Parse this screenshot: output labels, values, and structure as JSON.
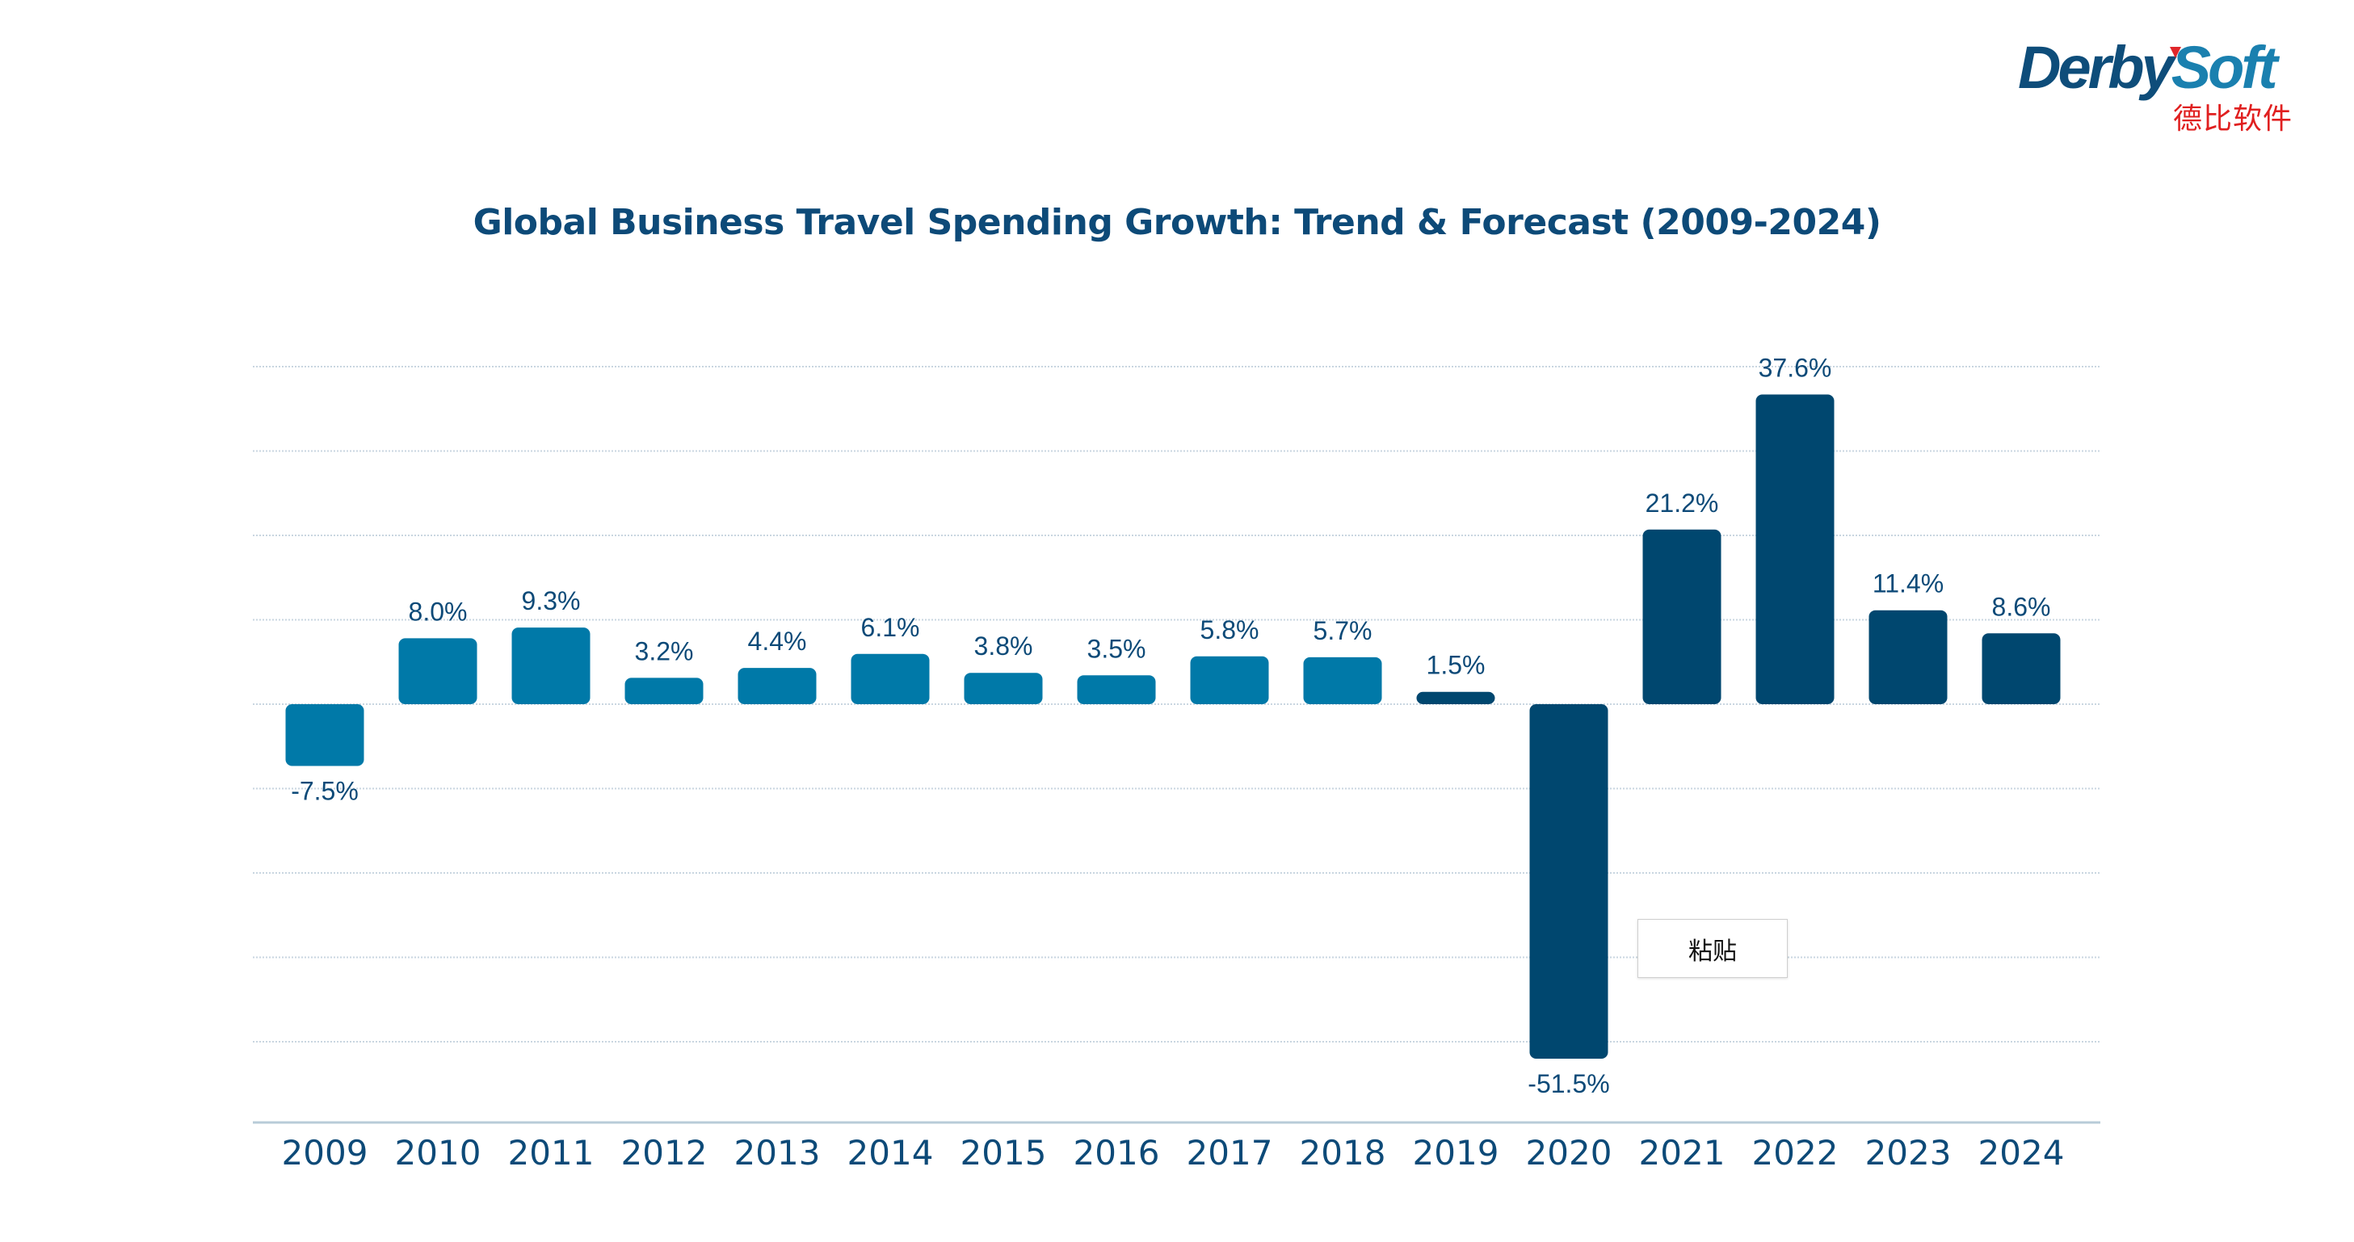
{
  "logo": {
    "brand_part1": "Derby",
    "brand_part2": "Soft",
    "chinese_name": "德比软件"
  },
  "context_menu": {
    "paste_label": "粘贴"
  },
  "colors": {
    "historical_bar": "#0079A8",
    "recent_bar": "#00476F",
    "text": "#0D4A78",
    "gridline": "#C9D6E0",
    "axis": "#B8CCD8"
  },
  "chart_data": {
    "type": "bar",
    "title": "Global Business Travel Spending Growth: Trend & Forecast (2009-2024)",
    "xlabel": "",
    "ylabel": "",
    "categories": [
      "2009",
      "2010",
      "2011",
      "2012",
      "2013",
      "2014",
      "2015",
      "2016",
      "2017",
      "2018",
      "2019",
      "2020",
      "2021",
      "2022",
      "2023",
      "2024"
    ],
    "values": [
      -7.5,
      8.0,
      9.3,
      3.2,
      4.4,
      6.1,
      3.8,
      3.5,
      5.8,
      5.7,
      1.5,
      -51.5,
      21.2,
      37.6,
      11.4,
      8.6
    ],
    "labels": [
      "-7.5%",
      "8.0%",
      "9.3%",
      "3.2%",
      "4.4%",
      "6.1%",
      "3.8%",
      "3.5%",
      "5.8%",
      "5.7%",
      "1.5%",
      "-51.5%",
      "21.2%",
      "37.6%",
      "11.4%",
      "8.6%"
    ],
    "series_color_groups": [
      "historical",
      "historical",
      "historical",
      "historical",
      "historical",
      "historical",
      "historical",
      "historical",
      "historical",
      "historical",
      "recent",
      "recent",
      "recent",
      "recent",
      "recent",
      "recent"
    ],
    "unit": "%",
    "ylim": [
      -51.5,
      40
    ],
    "grid": true,
    "y_tick_labels_shown": false,
    "legend": "none"
  }
}
